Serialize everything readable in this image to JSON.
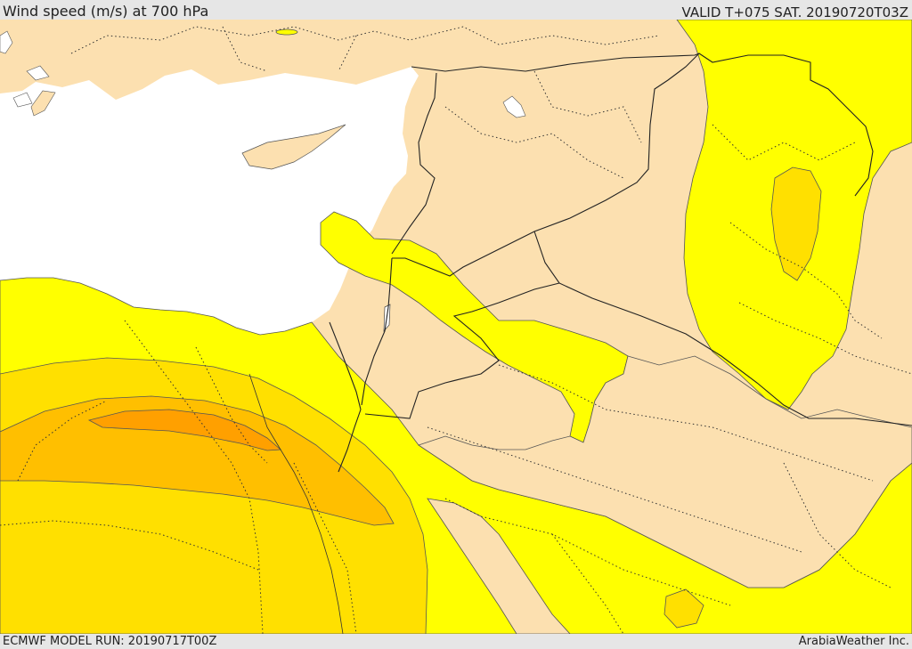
{
  "header": {
    "title": "Wind speed (m/s) at 700 hPa",
    "valid_time": "VALID T+075 SAT. 20190720T03Z"
  },
  "footer": {
    "model_run": "ECMWF MODEL RUN: 20190717T00Z",
    "credit": "ArabiaWeather Inc."
  },
  "map": {
    "variable": "wind speed",
    "units": "m/s",
    "level": "700 hPa",
    "colors": {
      "sea": "#ffffff",
      "land_calm": "#fce0b0",
      "band_1": "#ffff00",
      "band_2": "#ffe000",
      "band_3": "#ffbf00",
      "band_4": "#ffa000",
      "borders": "#222222"
    }
  }
}
